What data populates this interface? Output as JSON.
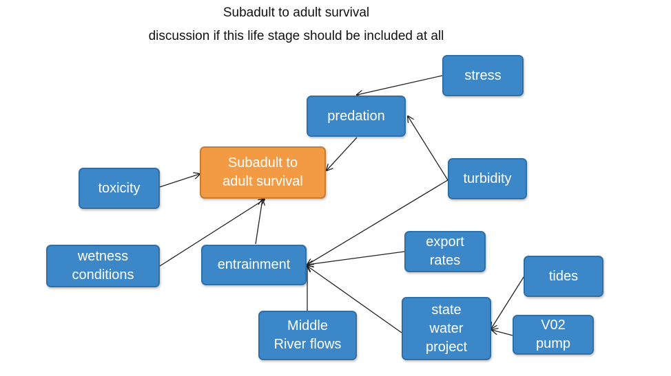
{
  "title": "Subadult to adult survival",
  "subtitle": "discussion if this life stage should be included at all",
  "colors": {
    "node": "#3b87c8",
    "focal": "#f29a44",
    "arrow": "#222222"
  },
  "nodes": {
    "stress": "stress",
    "predation": "predation",
    "subadult": "Subadult to\nadult survival",
    "toxicity": "toxicity",
    "turbidity": "turbidity",
    "wetness": "wetness\nconditions",
    "entrainment": "entrainment",
    "export": "export\nrates",
    "tides": "tides",
    "state_water": "state\nwater\nproject",
    "v02": "V02\npump",
    "middle_river": "Middle\nRiver flows"
  }
}
